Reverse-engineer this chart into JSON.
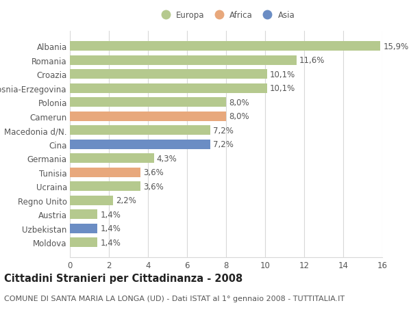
{
  "categories": [
    "Albania",
    "Romania",
    "Croazia",
    "Bosnia-Erzegovina",
    "Polonia",
    "Camerun",
    "Macedonia d/N.",
    "Cina",
    "Germania",
    "Tunisia",
    "Ucraina",
    "Regno Unito",
    "Austria",
    "Uzbekistan",
    "Moldova"
  ],
  "values": [
    15.9,
    11.6,
    10.1,
    10.1,
    8.0,
    8.0,
    7.2,
    7.2,
    4.3,
    3.6,
    3.6,
    2.2,
    1.4,
    1.4,
    1.4
  ],
  "labels": [
    "15,9%",
    "11,6%",
    "10,1%",
    "10,1%",
    "8,0%",
    "8,0%",
    "7,2%",
    "7,2%",
    "4,3%",
    "3,6%",
    "3,6%",
    "2,2%",
    "1,4%",
    "1,4%",
    "1,4%"
  ],
  "colors": [
    "#b5c98e",
    "#b5c98e",
    "#b5c98e",
    "#b5c98e",
    "#b5c98e",
    "#e8a87c",
    "#b5c98e",
    "#6b8dc4",
    "#b5c98e",
    "#e8a87c",
    "#b5c98e",
    "#b5c98e",
    "#b5c98e",
    "#6b8dc4",
    "#b5c98e"
  ],
  "legend_labels": [
    "Europa",
    "Africa",
    "Asia"
  ],
  "legend_colors": [
    "#b5c98e",
    "#e8a87c",
    "#6b8dc4"
  ],
  "title": "Cittadini Stranieri per Cittadinanza - 2008",
  "subtitle": "COMUNE DI SANTA MARIA LA LONGA (UD) - Dati ISTAT al 1° gennaio 2008 - TUTTITALIA.IT",
  "xlim": [
    0,
    16
  ],
  "xticks": [
    0,
    2,
    4,
    6,
    8,
    10,
    12,
    14,
    16
  ],
  "bg_color": "#ffffff",
  "grid_color": "#d8d8d8",
  "bar_height": 0.68,
  "label_fontsize": 8.5,
  "tick_fontsize": 8.5,
  "title_fontsize": 10.5,
  "subtitle_fontsize": 8.0
}
